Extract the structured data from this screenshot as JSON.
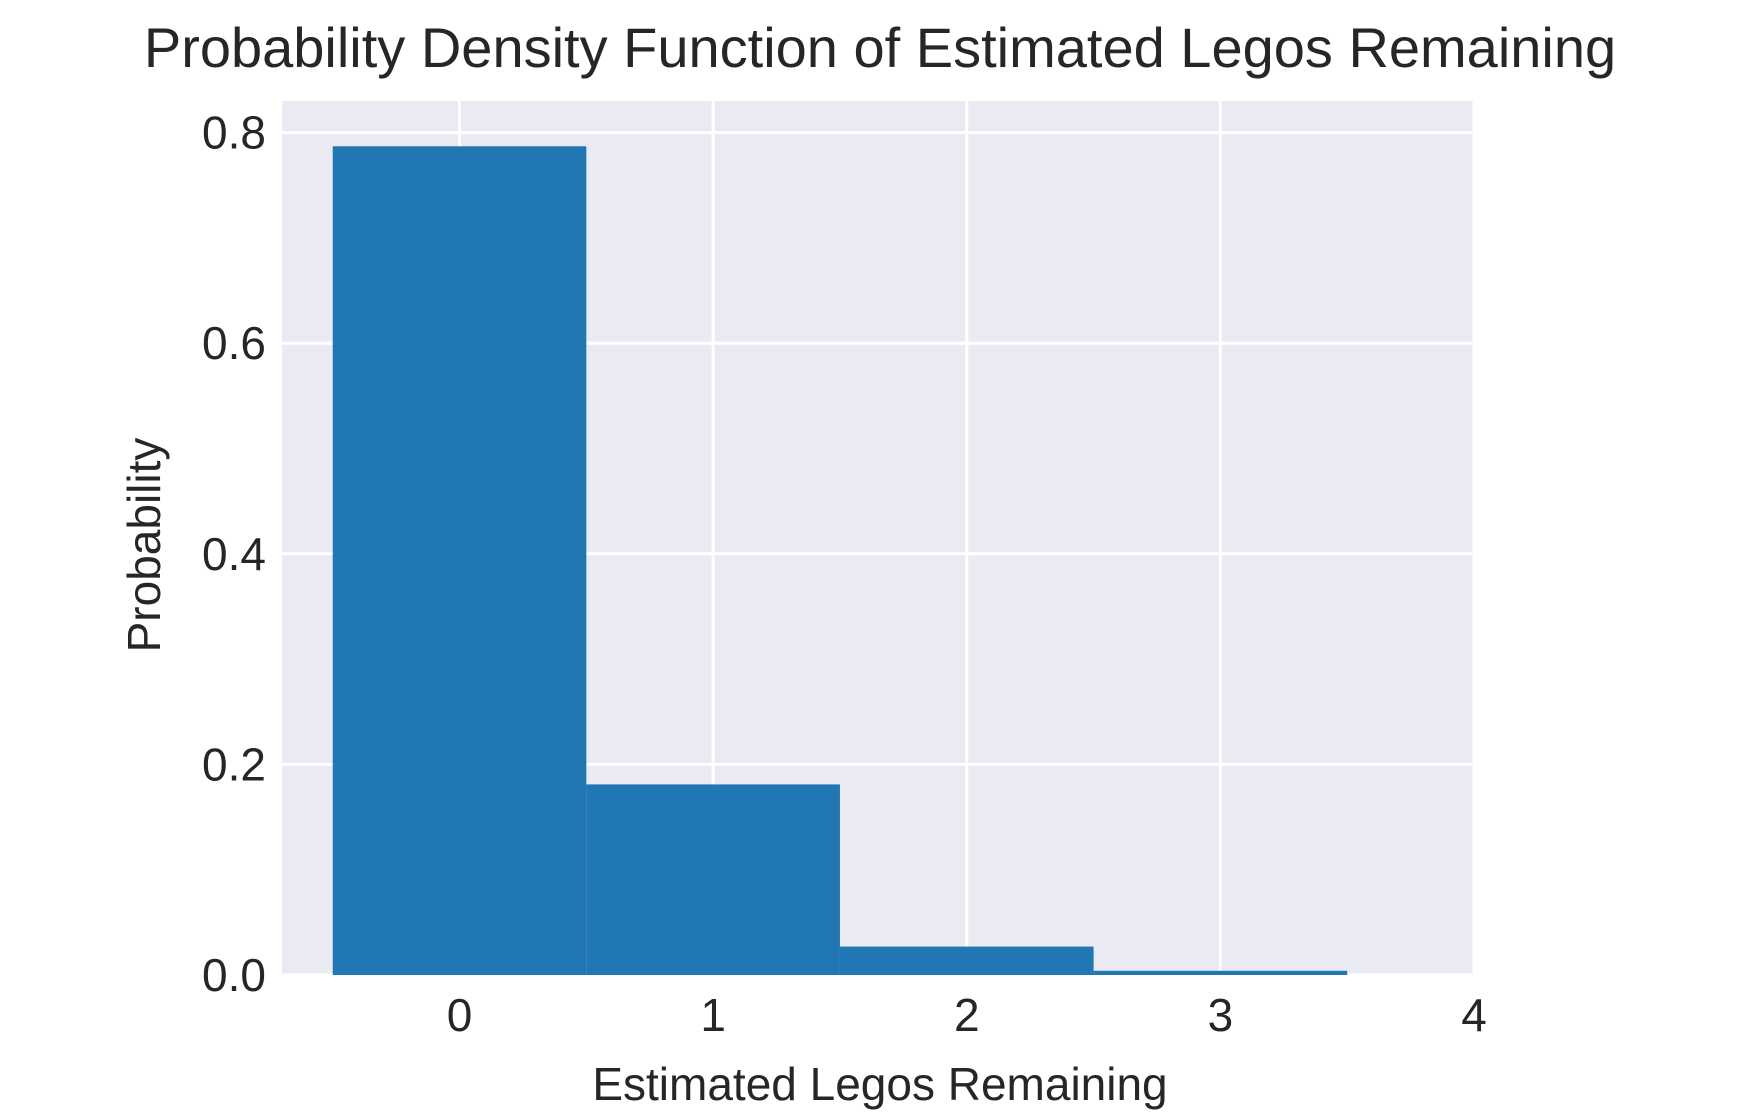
{
  "chart_data": {
    "type": "bar",
    "title": "Probability Density Function of Estimated Legos Remaining",
    "xlabel": "Estimated Legos Remaining",
    "ylabel": "Probability",
    "xlim": [
      -0.7,
      4.0
    ],
    "ylim": [
      0.0,
      0.83
    ],
    "x_ticks": [
      0,
      1,
      2,
      3,
      4
    ],
    "x_tick_labels": [
      "0",
      "1",
      "2",
      "3",
      "4"
    ],
    "y_ticks": [
      0.0,
      0.2,
      0.4,
      0.6,
      0.8
    ],
    "y_tick_labels": [
      "0.0",
      "0.2",
      "0.4",
      "0.6",
      "0.8"
    ],
    "bin_width": 1,
    "x": [
      0,
      1,
      2,
      3
    ],
    "values": [
      0.787,
      0.181,
      0.027,
      0.004
    ],
    "grid": true,
    "legend": "none",
    "colors": {
      "bar": "#2077b4",
      "plot_background": "#eaeaf2",
      "grid": "#ffffff",
      "text": "#262626"
    }
  }
}
